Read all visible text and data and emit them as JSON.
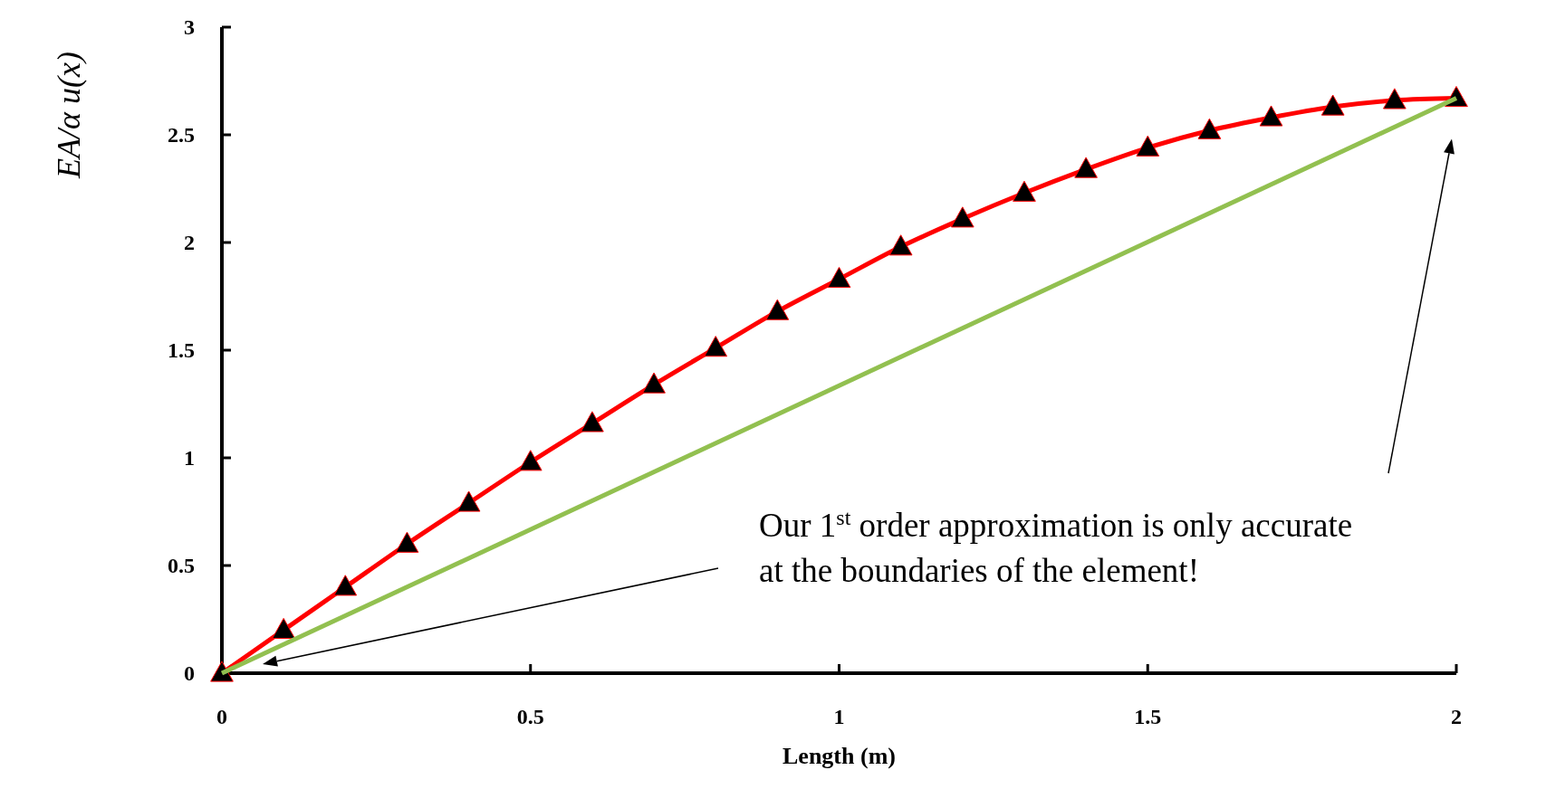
{
  "chart_data": {
    "type": "line",
    "xlabel": "Length (m)",
    "ylabel": "EA/α u(x)",
    "x": [
      0,
      0.1,
      0.2,
      0.3,
      0.4,
      0.5,
      0.6,
      0.7,
      0.8,
      0.9,
      1,
      1.1,
      1.2,
      1.3,
      1.4,
      1.5,
      1.6,
      1.7,
      1.8,
      1.9,
      2
    ],
    "series": [
      {
        "color": "#ff0000",
        "marker": "triangle",
        "values": [
          0,
          0.2,
          0.4,
          0.6,
          0.79,
          0.98,
          1.16,
          1.34,
          1.51,
          1.68,
          1.83,
          1.98,
          2.11,
          2.23,
          2.34,
          2.44,
          2.52,
          2.58,
          2.63,
          2.66,
          2.67
        ]
      },
      {
        "color": "#92c050",
        "marker": "none",
        "x": [
          0,
          2
        ],
        "values": [
          0,
          2.67
        ]
      }
    ],
    "xlim": [
      0,
      2
    ],
    "xticks": [
      0,
      0.5,
      1,
      1.5,
      2
    ],
    "ylim": [
      0,
      3
    ],
    "yticks": [
      0,
      0.5,
      1,
      1.5,
      2,
      2.5,
      3
    ],
    "grid": false,
    "annotations": [
      "Our 1$^{st}$ order approximation is only accurate at the boundaries of the element!"
    ]
  }
}
